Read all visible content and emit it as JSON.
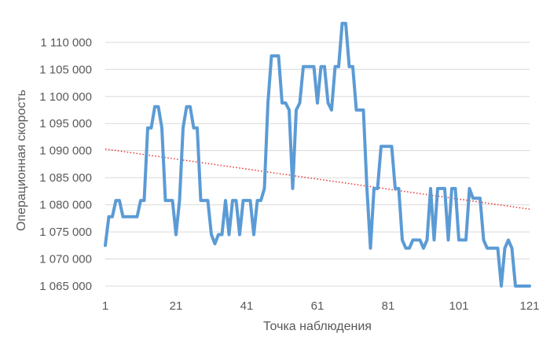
{
  "chart_data": {
    "type": "line",
    "title": "",
    "xlabel": "Точка наблюдения",
    "ylabel": "Операционная скорость",
    "ylim": [
      1065000,
      1110000
    ],
    "xlim": [
      1,
      121
    ],
    "grid": "horizontal",
    "legend": "none",
    "x_ticks": [
      1,
      21,
      41,
      61,
      81,
      101,
      121
    ],
    "y_ticks": [
      1065000,
      1070000,
      1075000,
      1080000,
      1085000,
      1090000,
      1095000,
      1100000,
      1105000,
      1110000
    ],
    "y_tick_labels": [
      "1 065 000",
      "1 070 000",
      "1 075 000",
      "1 080 000",
      "1 085 000",
      "1 090 000",
      "1 095 000",
      "1 100 000",
      "1 105 000",
      "1 110 000"
    ],
    "x_tick_labels": [
      "1",
      "21",
      "41",
      "61",
      "81",
      "101",
      "121"
    ],
    "series": [
      {
        "color": "#5B9BD5",
        "x": [
          1,
          2,
          3,
          4,
          5,
          6,
          7,
          8,
          9,
          10,
          11,
          12,
          13,
          14,
          15,
          16,
          17,
          18,
          19,
          20,
          21,
          22,
          23,
          24,
          25,
          26,
          27,
          28,
          29,
          30,
          31,
          32,
          33,
          34,
          35,
          36,
          37,
          38,
          39,
          40,
          41,
          42,
          43,
          44,
          45,
          46,
          47,
          48,
          49,
          50,
          51,
          52,
          53,
          54,
          55,
          56,
          57,
          58,
          59,
          60,
          61,
          62,
          63,
          64,
          65,
          66,
          67,
          68,
          69,
          70,
          71,
          72,
          73,
          74,
          75,
          76,
          77,
          78,
          79,
          80,
          81,
          82,
          83,
          84,
          85,
          86,
          87,
          88,
          89,
          90,
          91,
          92,
          93,
          94,
          95,
          96,
          97,
          98,
          99,
          100,
          101,
          102,
          103,
          104,
          105,
          106,
          107,
          108,
          109,
          110,
          111,
          112,
          113,
          114,
          115,
          116,
          117,
          118,
          119,
          120,
          121
        ],
        "values": [
          1072500,
          1077800,
          1077800,
          1080800,
          1080800,
          1077800,
          1077800,
          1077800,
          1077800,
          1077800,
          1080800,
          1080800,
          1094200,
          1094200,
          1098100,
          1098100,
          1094200,
          1080800,
          1080800,
          1080800,
          1074500,
          1080800,
          1094200,
          1098100,
          1098100,
          1094200,
          1094200,
          1080800,
          1080800,
          1080800,
          1074500,
          1072800,
          1074500,
          1074500,
          1080800,
          1074500,
          1080800,
          1080800,
          1074500,
          1080800,
          1080800,
          1080800,
          1074500,
          1080800,
          1080800,
          1083000,
          1098800,
          1107500,
          1107500,
          1107500,
          1098800,
          1098800,
          1097500,
          1083000,
          1097500,
          1098800,
          1105500,
          1105500,
          1105500,
          1105500,
          1098800,
          1105500,
          1105500,
          1098800,
          1097500,
          1105500,
          1105500,
          1113500,
          1113500,
          1105500,
          1105500,
          1097500,
          1097500,
          1097500,
          1083000,
          1072000,
          1083000,
          1083000,
          1090800,
          1090800,
          1090800,
          1090800,
          1083000,
          1083000,
          1073500,
          1072000,
          1072000,
          1073500,
          1073500,
          1073500,
          1072000,
          1073500,
          1083000,
          1073500,
          1083000,
          1083000,
          1083000,
          1073500,
          1083000,
          1083000,
          1073500,
          1073500,
          1073500,
          1083000,
          1081200,
          1081200,
          1081200,
          1073500,
          1072000,
          1072000,
          1072000,
          1072000,
          1065000,
          1072000,
          1073500,
          1072000,
          1065000,
          1065000,
          1065000,
          1065000,
          1065000
        ]
      }
    ],
    "trendline": {
      "type": "linear",
      "color": "#E8322C",
      "style": "dotted",
      "x": [
        1,
        121
      ],
      "values": [
        1090300,
        1079200
      ]
    }
  }
}
